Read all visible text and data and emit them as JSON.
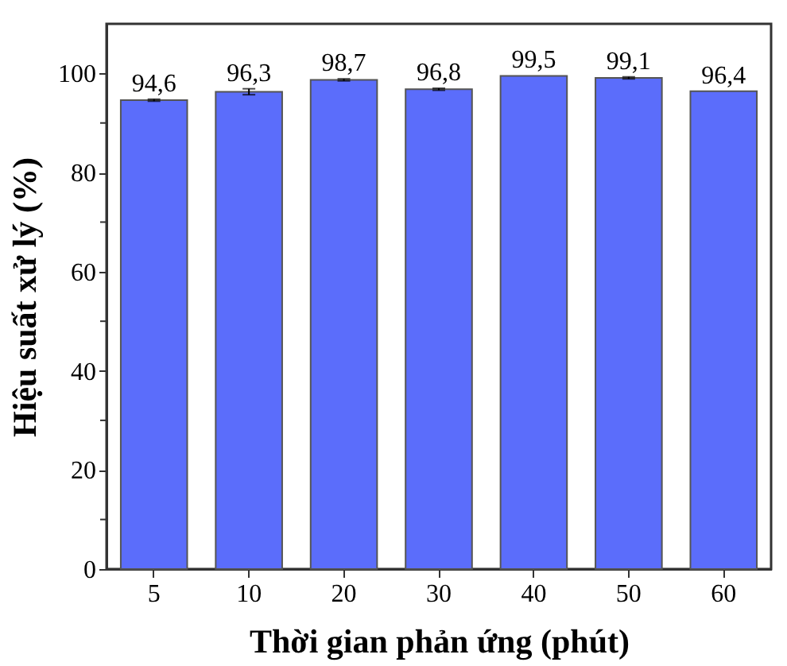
{
  "chart_data": {
    "type": "bar",
    "xlabel": "Thời gian phản ứng (phút)",
    "ylabel": "Hiệu suất xử lý (%)",
    "categories": [
      "5",
      "10",
      "20",
      "30",
      "40",
      "50",
      "60"
    ],
    "values": [
      94.6,
      96.3,
      98.7,
      96.8,
      99.5,
      99.1,
      96.4
    ],
    "errors": [
      0.2,
      0.6,
      0.2,
      0.2,
      null,
      0.2,
      null
    ],
    "value_labels": [
      "94,6",
      "96,3",
      "98,7",
      "96,8",
      "99,5",
      "99,1",
      "96,4"
    ],
    "color": "#5b6dfb",
    "ylim": [
      0,
      110
    ],
    "yticks": [
      0,
      {
        "value": 10,
        "label": null
      },
      20,
      {
        "value": 30,
        "label": null
      },
      40,
      {
        "value": 50,
        "label": null
      },
      60,
      {
        "value": 70,
        "label": null
      },
      80,
      {
        "value": 90,
        "label": null
      },
      100
    ],
    "grid": false
  }
}
